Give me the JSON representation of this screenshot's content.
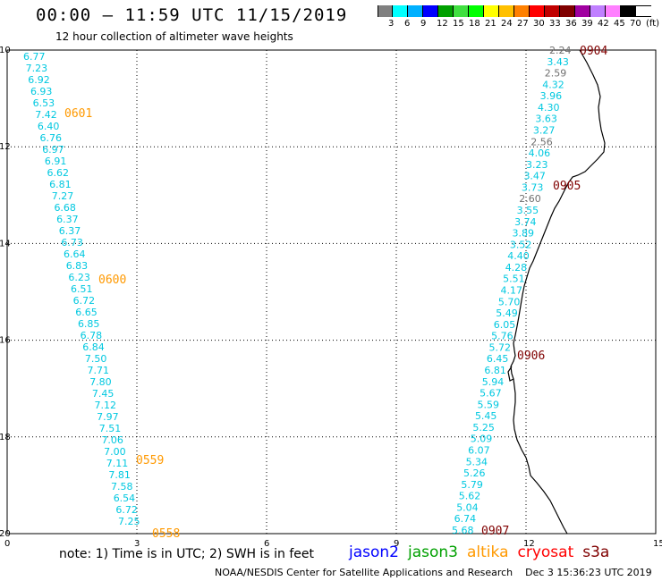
{
  "header": {
    "title": "00:00 — 11:59 UTC 11/15/2019",
    "subtitle": "12 hour collection of altimeter wave heights"
  },
  "legend": {
    "colors": [
      "#808080",
      "#00ffff",
      "#00b0ff",
      "#0000ff",
      "#00a000",
      "#40e040",
      "#00ff00",
      "#ffff00",
      "#ffc000",
      "#ff8000",
      "#ff0000",
      "#c00000",
      "#800000",
      "#a000a0",
      "#c080ff",
      "#ff80ff",
      "#000000"
    ],
    "labels": [
      "3",
      "6",
      "9",
      "12",
      "15",
      "18",
      "21",
      "24",
      "27",
      "30",
      "33",
      "36",
      "39",
      "42",
      "45",
      "70",
      "(ft)"
    ]
  },
  "axes": {
    "lat_ticks": [
      "10",
      "12",
      "14",
      "16",
      "18",
      "20"
    ],
    "lon_ticks": [
      "0",
      "3",
      "6",
      "9",
      "12",
      "15"
    ]
  },
  "track_left": {
    "color": "#00c8e0",
    "values": [
      "6.77",
      "7.23",
      "6.92",
      "6.93",
      "6.53",
      "7.42",
      "6.40",
      "6.76",
      "6.97",
      "6.91",
      "6.62",
      "6.81",
      "7.27",
      "6.68",
      "6.37",
      "6.37",
      "6.73",
      "6.64",
      "6.83",
      "6.23",
      "6.51",
      "6.72",
      "6.65",
      "6.85",
      "6.78",
      "6.84",
      "7.50",
      "7.71",
      "7.80",
      "7.45",
      "7.12",
      "7.97",
      "7.51",
      "7.06",
      "7.00",
      "7.11",
      "7.81",
      "7.58",
      "6.54",
      "6.72",
      "7.25"
    ],
    "times": [
      "0601",
      "0600",
      "0559",
      "0558"
    ]
  },
  "track_right": {
    "values": [
      "2.24",
      "3.43",
      "2.59",
      "4.32",
      "3.96",
      "4.30",
      "3.63",
      "3.27",
      "2.56",
      "4.06",
      "3.23",
      "3.47",
      "3.73",
      "2.60",
      "3.55",
      "3.74",
      "3.89",
      "3.52",
      "4.40",
      "4.28",
      "5.51",
      "4.17",
      "5.70",
      "5.49",
      "6.05",
      "5.76",
      "5.72",
      "6.45",
      "6.81",
      "5.94",
      "5.67",
      "5.59",
      "5.45",
      "5.25",
      "5.09",
      "6.07",
      "5.34",
      "5.26",
      "5.79",
      "5.62",
      "5.04",
      "6.74",
      "5.68"
    ],
    "gray_values": [
      "2.24",
      "2.59",
      "2.56",
      "2.60"
    ],
    "times": [
      "0904",
      "0905",
      "0906",
      "0907"
    ]
  },
  "footer": {
    "note": "note: 1) Time is in UTC; 2) SWH is in feet",
    "satellites": [
      {
        "name": "jason2",
        "color": "#0000ff"
      },
      {
        "name": "jason3",
        "color": "#00a000"
      },
      {
        "name": "altika",
        "color": "#ff9900"
      },
      {
        "name": "cryosat",
        "color": "#ff0000"
      },
      {
        "name": "s3a",
        "color": "#800000"
      }
    ],
    "credit": "NOAA/NESDIS Center for Satellite Applications and Research",
    "credit_date": "Dec  3 15:36:23 UTC 2019"
  }
}
